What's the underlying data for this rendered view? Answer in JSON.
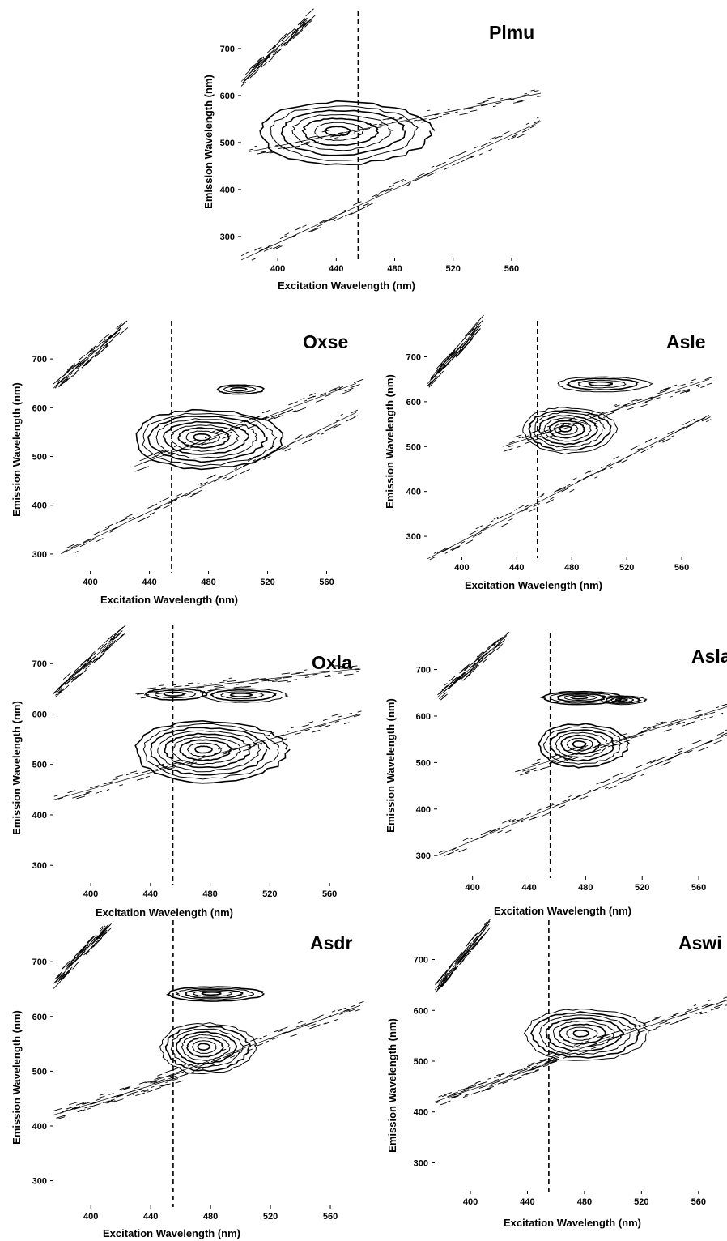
{
  "chart_data": [
    {
      "type": "contour",
      "title": "Plmu",
      "xlabel": "Excitation Wavelength (nm)",
      "ylabel": "Emission Wavelength (nm)",
      "xlim": [
        375,
        580
      ],
      "ylim": [
        255,
        755
      ],
      "x_ticks": [
        400,
        440,
        480,
        520,
        560
      ],
      "y_ticks": [
        300,
        400,
        500,
        600,
        700
      ],
      "dashed_line_x": 455,
      "peaks": [
        {
          "x": 440,
          "y": 525,
          "levels": 7,
          "rx": 52,
          "ry": 72
        }
      ],
      "scatter_bands": [
        {
          "from": [
            375,
            630
          ],
          "to": [
            420,
            760
          ]
        },
        {
          "from": [
            375,
            250
          ],
          "to": [
            580,
            545
          ]
        },
        {
          "from": [
            380,
            480
          ],
          "to": [
            580,
            605
          ]
        }
      ]
    },
    {
      "type": "contour",
      "title": "Oxse",
      "xlabel": "Excitation Wavelength (nm)",
      "ylabel": "Emission Wavelength (nm)",
      "xlim": [
        375,
        580
      ],
      "ylim": [
        265,
        755
      ],
      "x_ticks": [
        400,
        440,
        480,
        520,
        560
      ],
      "y_ticks": [
        300,
        400,
        500,
        600,
        700
      ],
      "dashed_line_x": 455,
      "peaks": [
        {
          "x": 475,
          "y": 540,
          "levels": 9,
          "rx": 45,
          "ry": 65
        },
        {
          "x": 500,
          "y": 638,
          "levels": 3,
          "rx": 14,
          "ry": 10
        }
      ],
      "scatter_bands": [
        {
          "from": [
            375,
            640
          ],
          "to": [
            420,
            760
          ]
        },
        {
          "from": [
            380,
            300
          ],
          "to": [
            580,
            590
          ]
        },
        {
          "from": [
            430,
            480
          ],
          "to": [
            580,
            650
          ]
        }
      ]
    },
    {
      "type": "contour",
      "title": "Asle",
      "xlabel": "Excitation Wavelength (nm)",
      "ylabel": "Emission Wavelength (nm)",
      "xlim": [
        375,
        580
      ],
      "ylim": [
        255,
        755
      ],
      "x_ticks": [
        400,
        440,
        480,
        520,
        560
      ],
      "y_ticks": [
        300,
        400,
        500,
        600,
        700
      ],
      "dashed_line_x": 455,
      "peaks": [
        {
          "x": 475,
          "y": 540,
          "levels": 8,
          "rx": 30,
          "ry": 55
        },
        {
          "x": 500,
          "y": 640,
          "levels": 4,
          "rx": 30,
          "ry": 18
        }
      ],
      "scatter_bands": [
        {
          "from": [
            375,
            640
          ],
          "to": [
            410,
            760
          ]
        },
        {
          "from": [
            375,
            250
          ],
          "to": [
            580,
            570
          ]
        },
        {
          "from": [
            430,
            500
          ],
          "to": [
            580,
            650
          ]
        }
      ]
    },
    {
      "type": "contour",
      "title": "Oxla",
      "xlabel": "Excitation Wavelength (nm)",
      "ylabel": "Emission Wavelength (nm)",
      "xlim": [
        375,
        580
      ],
      "ylim": [
        265,
        755
      ],
      "x_ticks": [
        400,
        440,
        480,
        520,
        560
      ],
      "y_ticks": [
        300,
        400,
        500,
        600,
        700
      ],
      "dashed_line_x": 455,
      "peaks": [
        {
          "x": 475,
          "y": 530,
          "levels": 9,
          "rx": 45,
          "ry": 65
        },
        {
          "x": 500,
          "y": 638,
          "levels": 4,
          "rx": 25,
          "ry": 15
        },
        {
          "x": 455,
          "y": 640,
          "levels": 3,
          "rx": 18,
          "ry": 12
        }
      ],
      "scatter_bands": [
        {
          "from": [
            375,
            640
          ],
          "to": [
            420,
            760
          ]
        },
        {
          "from": [
            375,
            430
          ],
          "to": [
            580,
            600
          ]
        },
        {
          "from": [
            430,
            640
          ],
          "to": [
            580,
            690
          ]
        }
      ]
    },
    {
      "type": "contour",
      "title": "Asla",
      "xlabel": "Excitation Wavelength (nm)",
      "ylabel": "Emission Wavelength (nm)",
      "xlim": [
        375,
        580
      ],
      "ylim": [
        255,
        755
      ],
      "x_ticks": [
        400,
        440,
        480,
        520,
        560
      ],
      "y_ticks": [
        300,
        400,
        500,
        600,
        700
      ],
      "dashed_line_x": 455,
      "peaks": [
        {
          "x": 475,
          "y": 540,
          "levels": 7,
          "rx": 28,
          "ry": 50
        },
        {
          "x": 475,
          "y": 640,
          "levels": 5,
          "rx": 25,
          "ry": 15
        },
        {
          "x": 505,
          "y": 635,
          "levels": 4,
          "rx": 14,
          "ry": 10
        }
      ],
      "scatter_bands": [
        {
          "from": [
            375,
            640
          ],
          "to": [
            420,
            760
          ]
        },
        {
          "from": [
            375,
            300
          ],
          "to": [
            580,
            560
          ]
        },
        {
          "from": [
            430,
            480
          ],
          "to": [
            580,
            620
          ]
        }
      ]
    },
    {
      "type": "contour",
      "title": "Asdr",
      "xlabel": "Excitation Wavelength (nm)",
      "ylabel": "Emission Wavelength (nm)",
      "xlim": [
        375,
        580
      ],
      "ylim": [
        255,
        755
      ],
      "x_ticks": [
        400,
        440,
        480,
        520,
        560
      ],
      "y_ticks": [
        300,
        400,
        500,
        600,
        700
      ],
      "dashed_line_x": 455,
      "peaks": [
        {
          "x": 475,
          "y": 545,
          "levels": 8,
          "rx": 28,
          "ry": 50
        },
        {
          "x": 480,
          "y": 642,
          "levels": 5,
          "rx": 28,
          "ry": 14
        }
      ],
      "scatter_bands": [
        {
          "from": [
            375,
            660
          ],
          "to": [
            410,
            760
          ]
        },
        {
          "from": [
            375,
            420
          ],
          "to": [
            460,
            490
          ]
        },
        {
          "from": [
            440,
            480
          ],
          "to": [
            580,
            620
          ]
        }
      ]
    },
    {
      "type": "contour",
      "title": "Aswi",
      "xlabel": "Excitation Wavelength (nm)",
      "ylabel": "Emission Wavelength (nm)",
      "xlim": [
        375,
        580
      ],
      "ylim": [
        245,
        755
      ],
      "x_ticks": [
        400,
        440,
        480,
        520,
        560
      ],
      "y_ticks": [
        300,
        400,
        500,
        600,
        700
      ],
      "dashed_line_x": 455,
      "peaks": [
        {
          "x": 477,
          "y": 555,
          "levels": 8,
          "rx": 38,
          "ry": 55
        }
      ],
      "scatter_bands": [
        {
          "from": [
            375,
            640
          ],
          "to": [
            410,
            760
          ]
        },
        {
          "from": [
            375,
            420
          ],
          "to": [
            460,
            500
          ]
        },
        {
          "from": [
            440,
            490
          ],
          "to": [
            580,
            620
          ]
        }
      ]
    }
  ]
}
